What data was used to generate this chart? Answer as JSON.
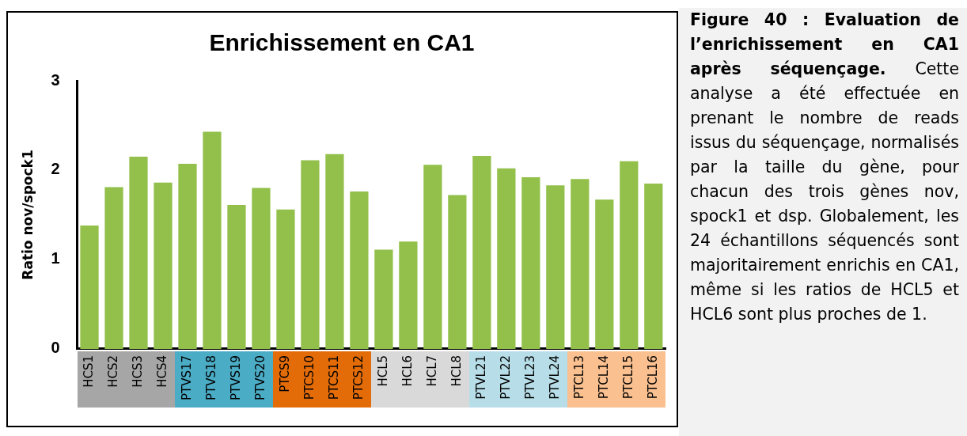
{
  "chart_data": {
    "type": "bar",
    "title": "Enrichissement en CA1",
    "ylabel": "Ratio nov/spock1",
    "categories": [
      "HCS1",
      "HCS2",
      "HCS3",
      "HCS4",
      "PTVS17",
      "PTVS18",
      "PTVS19",
      "PTVS20",
      "PTCS9",
      "PTCS10",
      "PTCS11",
      "PTCS12",
      "HCL5",
      "HCL6",
      "HCL7",
      "HCL8",
      "PTVL21",
      "PTVL22",
      "PTVL23",
      "PTVL24",
      "PTCL13",
      "PTCL14",
      "PTCL15",
      "PTCL16"
    ],
    "values": [
      1.38,
      1.81,
      2.15,
      1.86,
      2.07,
      2.43,
      1.61,
      1.8,
      1.56,
      2.11,
      2.18,
      1.76,
      1.11,
      1.2,
      2.06,
      1.72,
      2.16,
      2.02,
      1.92,
      1.83,
      1.9,
      1.67,
      2.1,
      1.85
    ],
    "color": "#92c04a",
    "ylim": [
      0,
      3
    ],
    "yticks": [
      0,
      1,
      2,
      3
    ],
    "grid": false,
    "legend": false,
    "annotations": [
      "Figure 40 : Evaluation de l’enrichissement en CA1 après séquençage.",
      "Cette analyse a été effectuée en prenant le nombre de reads issus du séquençage, normalisés par la taille du gène, pour chacun des trois gènes nov, spock1 et dsp. Globalement, les 24 échantillons séquencés sont majoritairement enrichis en CA1, même si les ratios de HCL5 et HCL6 sont plus proches de 1."
    ]
  }
}
